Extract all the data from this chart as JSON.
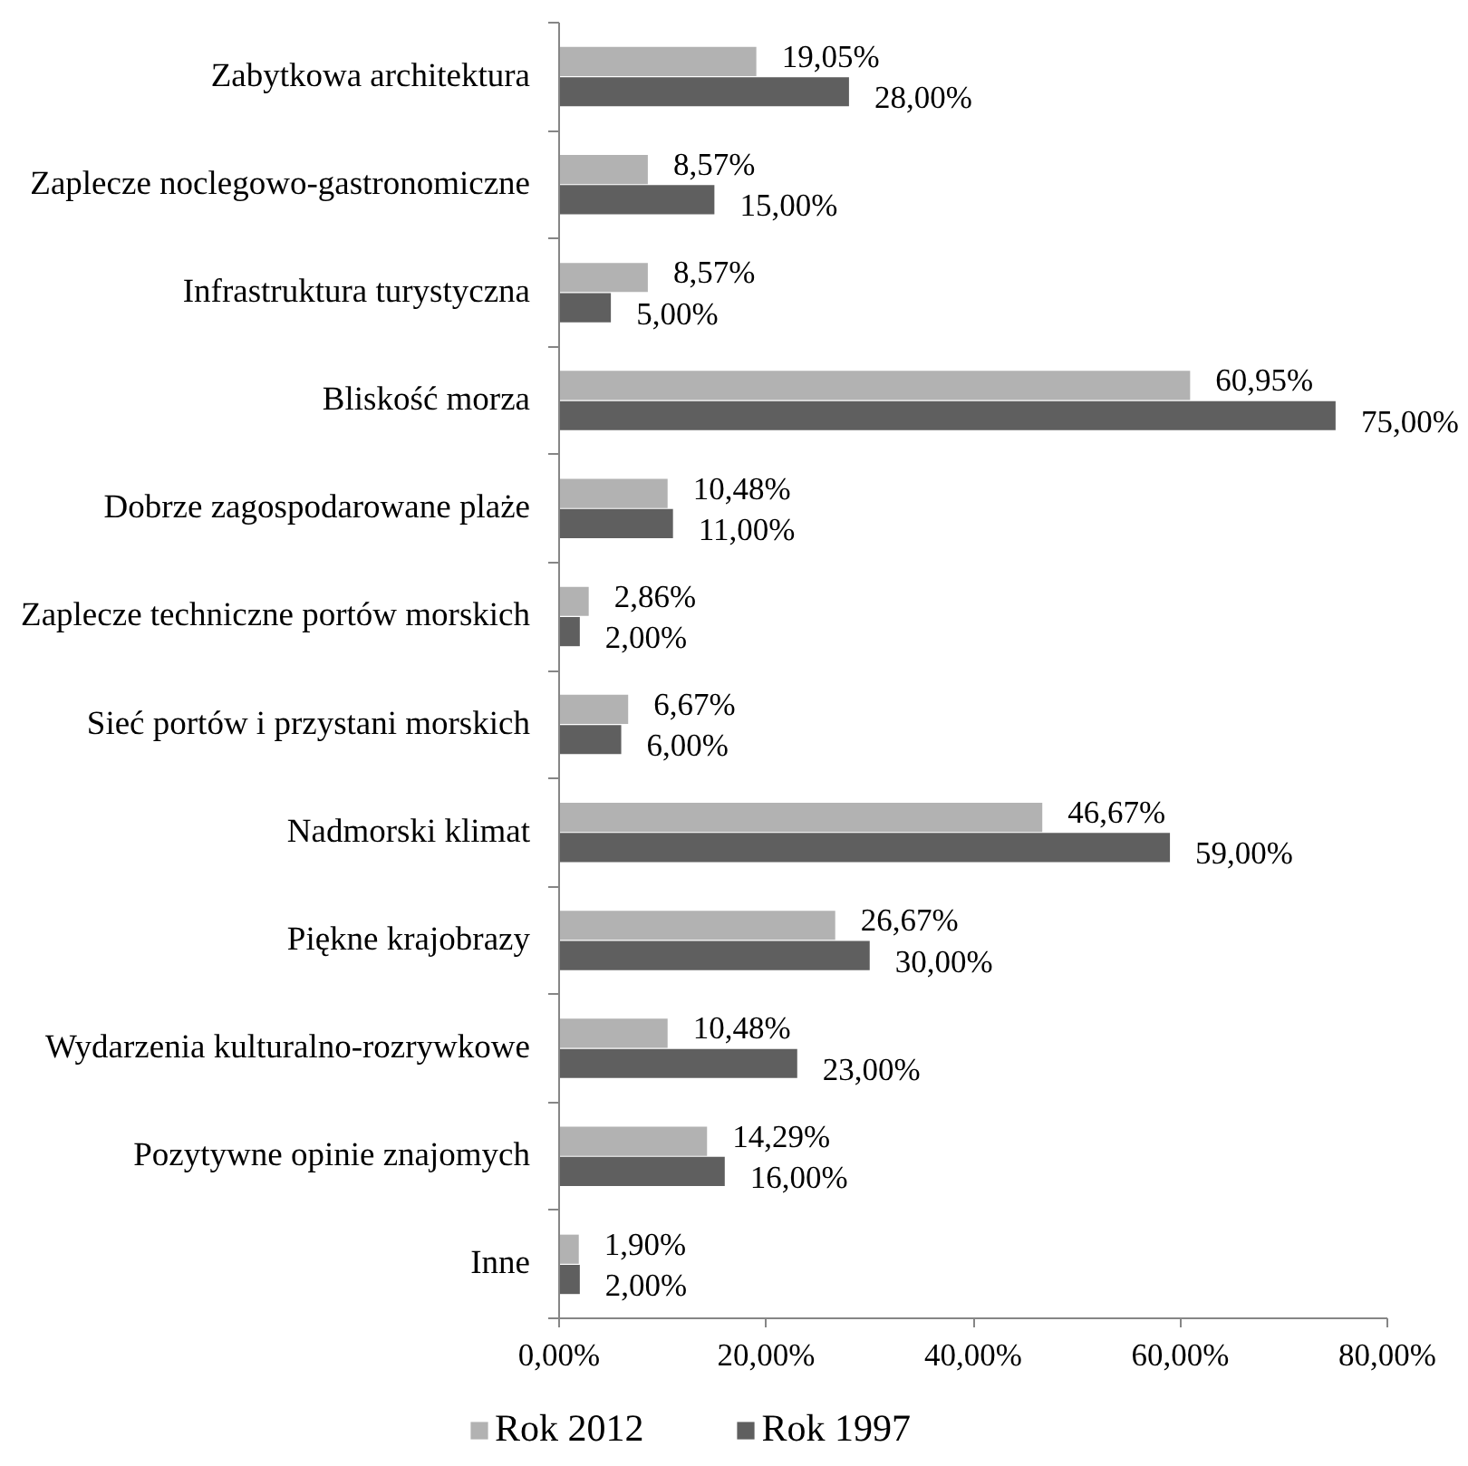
{
  "chart_data": {
    "type": "bar",
    "orientation": "horizontal",
    "categories": [
      "Zabytkowa architektura",
      "Zaplecze noclegowo-gastronomiczne",
      "Infrastruktura turystyczna",
      "Bliskość morza",
      "Dobrze zagospodarowane plaże",
      "Zaplecze techniczne portów morskich",
      "Sieć portów i przystani morskich",
      "Nadmorski klimat",
      "Piękne krajobrazy",
      "Wydarzenia kulturalno-rozrywkowe",
      "Pozytywne opinie znajomych",
      "Inne"
    ],
    "series": [
      {
        "name": "Rok 2012",
        "color": "#b2b2b2",
        "values": [
          19.05,
          8.57,
          8.57,
          60.95,
          10.48,
          2.86,
          6.67,
          46.67,
          26.67,
          10.48,
          14.29,
          1.9
        ],
        "value_labels": [
          "19,05%",
          "8,57%",
          "8,57%",
          "60,95%",
          "10,48%",
          "2,86%",
          "6,67%",
          "46,67%",
          "26,67%",
          "10,48%",
          "14,29%",
          "1,90%"
        ]
      },
      {
        "name": "Rok 1997",
        "color": "#5f5f5f",
        "values": [
          28,
          15,
          5,
          75,
          11,
          2,
          6,
          59,
          30,
          23,
          16,
          2
        ],
        "value_labels": [
          "28,00%",
          "15,00%",
          "5,00%",
          "75,00%",
          "11,00%",
          "2,00%",
          "6,00%",
          "59,00%",
          "30,00%",
          "23,00%",
          "16,00%",
          "2,00%"
        ]
      }
    ],
    "xlim": [
      0,
      80
    ],
    "xticks": [
      {
        "value": 0,
        "label": "0,00%"
      },
      {
        "value": 20,
        "label": "20,00%"
      },
      {
        "value": 40,
        "label": "40,00%"
      },
      {
        "value": 60,
        "label": "60,00%"
      },
      {
        "value": 80,
        "label": "80,00%"
      }
    ],
    "legend": "bottom"
  }
}
